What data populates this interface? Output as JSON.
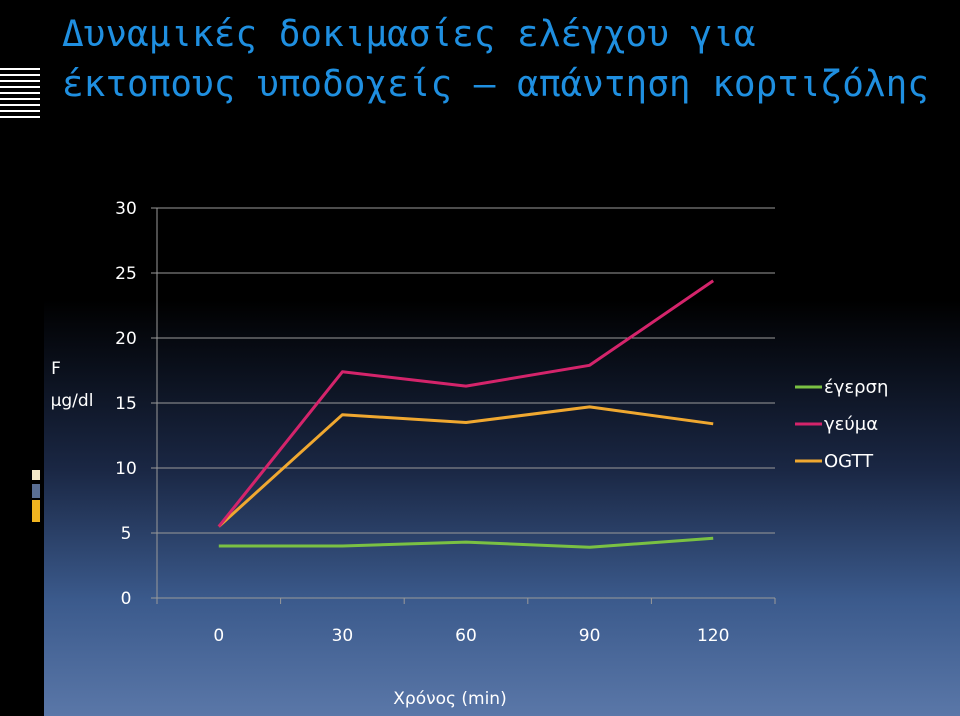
{
  "title": "Δυναμικές δοκιμασίες ελέγχου για έκτοπους υποδοχείς – απάντηση κορτιζόλης",
  "chart_data": {
    "type": "line",
    "x": [
      0,
      30,
      60,
      90,
      120
    ],
    "xlabel": "Χρόνος (min)",
    "ylabel": "F",
    "yunit": "μg/dl",
    "ylim": [
      0,
      30
    ],
    "yticks": [
      "0",
      "5",
      "10",
      "15",
      "20",
      "25",
      "30"
    ],
    "xticks": [
      "0",
      "30",
      "60",
      "90",
      "120"
    ],
    "grid": "horizontal",
    "legend": "right",
    "series": [
      {
        "name": "έγερση",
        "color": "#7ac143",
        "values": [
          4.0,
          4.0,
          4.3,
          3.9,
          4.6
        ]
      },
      {
        "name": "γεύμα",
        "color": "#d4246b",
        "values": [
          5.5,
          17.4,
          16.3,
          17.9,
          24.4
        ]
      },
      {
        "name": "OGTT",
        "color": "#f0a830",
        "values": [
          5.5,
          14.1,
          13.5,
          14.7,
          13.4
        ]
      }
    ]
  }
}
